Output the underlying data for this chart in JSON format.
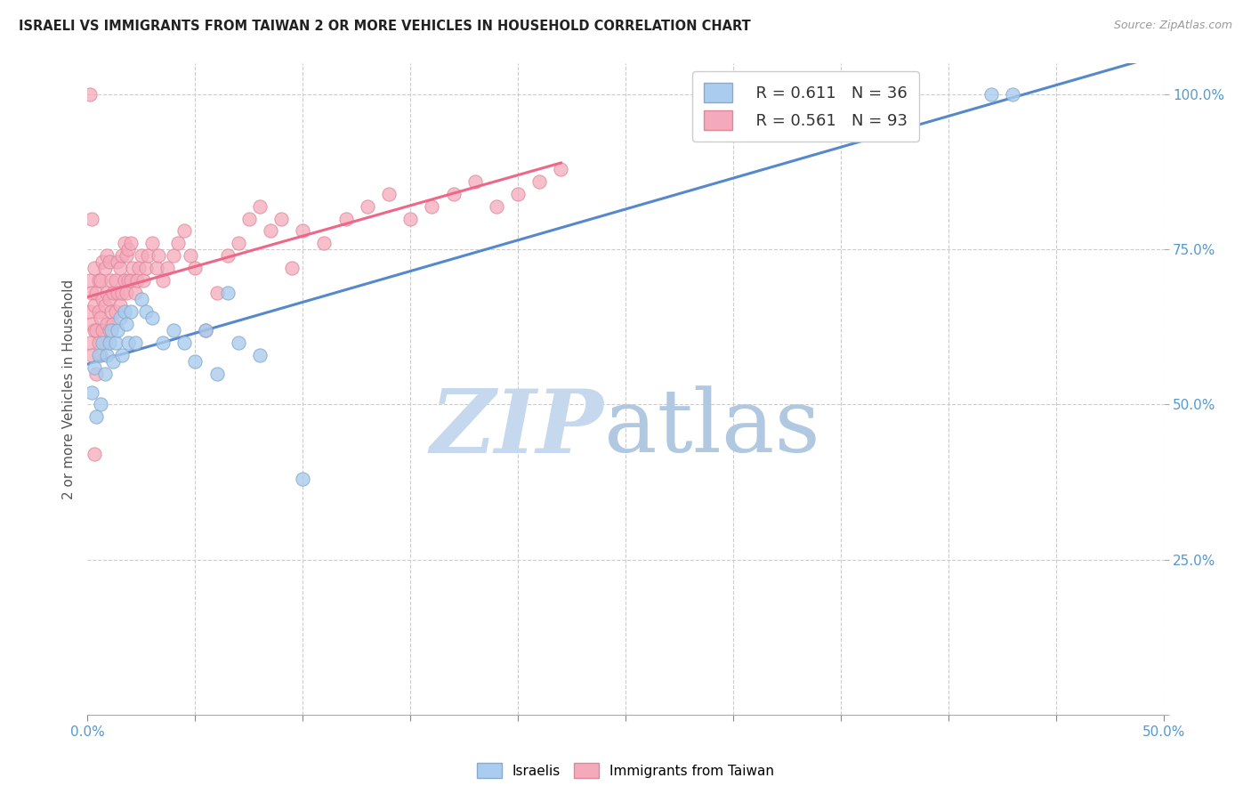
{
  "title": "ISRAELI VS IMMIGRANTS FROM TAIWAN 2 OR MORE VEHICLES IN HOUSEHOLD CORRELATION CHART",
  "source": "Source: ZipAtlas.com",
  "ylabel": "2 or more Vehicles in Household",
  "xmin": 0.0,
  "xmax": 0.5,
  "ymin": 0.0,
  "ymax": 1.05,
  "israelis_R": 0.611,
  "israelis_N": 36,
  "taiwan_R": 0.561,
  "taiwan_N": 93,
  "israelis_color": "#aaccee",
  "israelis_edge": "#88aacc",
  "taiwan_color": "#f5aabb",
  "taiwan_edge": "#dd8899",
  "israelis_line_color": "#5588cc",
  "taiwan_line_color": "#ee6688",
  "watermark_zip_color": "#c5d8ee",
  "watermark_atlas_color": "#b0c8e0",
  "israelis_x": [
    0.002,
    0.003,
    0.004,
    0.005,
    0.006,
    0.007,
    0.008,
    0.009,
    0.01,
    0.011,
    0.012,
    0.013,
    0.014,
    0.015,
    0.016,
    0.017,
    0.018,
    0.019,
    0.02,
    0.022,
    0.025,
    0.027,
    0.03,
    0.035,
    0.04,
    0.045,
    0.05,
    0.055,
    0.06,
    0.065,
    0.07,
    0.08,
    0.1,
    0.38,
    0.42,
    0.43
  ],
  "israelis_y": [
    0.52,
    0.56,
    0.48,
    0.58,
    0.5,
    0.6,
    0.55,
    0.58,
    0.6,
    0.62,
    0.57,
    0.6,
    0.62,
    0.64,
    0.58,
    0.65,
    0.63,
    0.6,
    0.65,
    0.6,
    0.67,
    0.65,
    0.64,
    0.6,
    0.62,
    0.6,
    0.57,
    0.62,
    0.55,
    0.68,
    0.6,
    0.58,
    0.38,
    1.0,
    1.0,
    1.0
  ],
  "taiwan_x": [
    0.001,
    0.001,
    0.001,
    0.002,
    0.002,
    0.002,
    0.003,
    0.003,
    0.003,
    0.004,
    0.004,
    0.004,
    0.005,
    0.005,
    0.005,
    0.006,
    0.006,
    0.006,
    0.007,
    0.007,
    0.007,
    0.008,
    0.008,
    0.008,
    0.009,
    0.009,
    0.009,
    0.01,
    0.01,
    0.01,
    0.011,
    0.011,
    0.012,
    0.012,
    0.013,
    0.013,
    0.014,
    0.014,
    0.015,
    0.015,
    0.016,
    0.016,
    0.017,
    0.017,
    0.018,
    0.018,
    0.019,
    0.019,
    0.02,
    0.02,
    0.021,
    0.022,
    0.023,
    0.024,
    0.025,
    0.026,
    0.027,
    0.028,
    0.03,
    0.032,
    0.033,
    0.035,
    0.037,
    0.04,
    0.042,
    0.045,
    0.048,
    0.05,
    0.055,
    0.06,
    0.065,
    0.07,
    0.075,
    0.08,
    0.085,
    0.09,
    0.095,
    0.1,
    0.11,
    0.12,
    0.13,
    0.14,
    0.15,
    0.16,
    0.17,
    0.18,
    0.19,
    0.2,
    0.21,
    0.22,
    0.001,
    0.002,
    0.003
  ],
  "taiwan_y": [
    0.6,
    0.65,
    0.7,
    0.58,
    0.63,
    0.68,
    0.62,
    0.66,
    0.72,
    0.55,
    0.62,
    0.68,
    0.6,
    0.65,
    0.7,
    0.58,
    0.64,
    0.7,
    0.62,
    0.67,
    0.73,
    0.6,
    0.66,
    0.72,
    0.63,
    0.68,
    0.74,
    0.62,
    0.67,
    0.73,
    0.65,
    0.7,
    0.63,
    0.68,
    0.65,
    0.7,
    0.68,
    0.73,
    0.66,
    0.72,
    0.68,
    0.74,
    0.7,
    0.76,
    0.68,
    0.74,
    0.7,
    0.75,
    0.7,
    0.76,
    0.72,
    0.68,
    0.7,
    0.72,
    0.74,
    0.7,
    0.72,
    0.74,
    0.76,
    0.72,
    0.74,
    0.7,
    0.72,
    0.74,
    0.76,
    0.78,
    0.74,
    0.72,
    0.62,
    0.68,
    0.74,
    0.76,
    0.8,
    0.82,
    0.78,
    0.8,
    0.72,
    0.78,
    0.76,
    0.8,
    0.82,
    0.84,
    0.8,
    0.82,
    0.84,
    0.86,
    0.82,
    0.84,
    0.86,
    0.88,
    1.0,
    0.8,
    0.42
  ]
}
